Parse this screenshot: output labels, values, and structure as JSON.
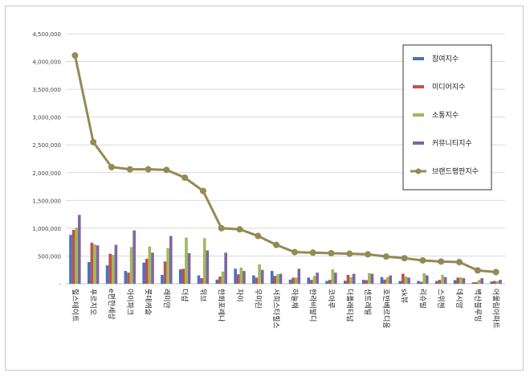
{
  "chart_data": {
    "type": "bar",
    "title": "",
    "xlabel": "",
    "ylabel": "",
    "ylim": [
      0,
      4500000
    ],
    "yticks": [
      "-",
      "500,000",
      "1,000,000",
      "1,500,000",
      "2,000,000",
      "2,500,000",
      "3,000,000",
      "3,500,000",
      "4,000,000",
      "4,500,000"
    ],
    "grid": true,
    "legend_position": "right",
    "categories": [
      "힐스테이트",
      "푸르지오",
      "e편한세상",
      "아이파크",
      "롯데캐슬",
      "래미안",
      "더샵",
      "위브",
      "한화포레나",
      "자이",
      "우미린",
      "서희스타힐스",
      "하늘채",
      "한라비발디",
      "코아루",
      "더플래티넘",
      "센트레빌",
      "호반베르디움",
      "sk뷰",
      "리슈빌",
      "스위첸",
      "데시앙",
      "벽산블루밍",
      "어울림아파트"
    ],
    "series": [
      {
        "name": "참여지수",
        "color": "#4472c4",
        "kind": "bar",
        "values": [
          880000,
          390000,
          330000,
          230000,
          380000,
          160000,
          260000,
          150000,
          75000,
          270000,
          150000,
          230000,
          75000,
          110000,
          50000,
          55000,
          70000,
          120000,
          50000,
          50000,
          50000,
          65000,
          25000,
          40000
        ]
      },
      {
        "name": "미디어지수",
        "color": "#c0504d",
        "kind": "bar",
        "values": [
          970000,
          740000,
          540000,
          200000,
          450000,
          400000,
          270000,
          100000,
          130000,
          170000,
          110000,
          140000,
          110000,
          70000,
          70000,
          160000,
          65000,
          75000,
          180000,
          35000,
          70000,
          110000,
          30000,
          50000
        ]
      },
      {
        "name": "소통지수",
        "color": "#9bbb59",
        "kind": "bar",
        "values": [
          1010000,
          710000,
          520000,
          660000,
          670000,
          640000,
          830000,
          820000,
          220000,
          290000,
          350000,
          170000,
          110000,
          140000,
          260000,
          120000,
          190000,
          120000,
          130000,
          190000,
          160000,
          115000,
          70000,
          45000
        ]
      },
      {
        "name": "커뮤니티지수",
        "color": "#8064a2",
        "kind": "bar",
        "values": [
          1240000,
          690000,
          700000,
          960000,
          560000,
          860000,
          550000,
          600000,
          560000,
          230000,
          250000,
          180000,
          270000,
          200000,
          200000,
          180000,
          180000,
          150000,
          110000,
          150000,
          120000,
          100000,
          100000,
          70000
        ]
      },
      {
        "name": "브랜드평판지수",
        "color": "#948a54",
        "kind": "line",
        "values": [
          4110000,
          2550000,
          2100000,
          2060000,
          2060000,
          2050000,
          1910000,
          1670000,
          1000000,
          980000,
          860000,
          700000,
          570000,
          560000,
          550000,
          540000,
          530000,
          490000,
          460000,
          420000,
          400000,
          390000,
          240000,
          210000
        ]
      }
    ]
  }
}
